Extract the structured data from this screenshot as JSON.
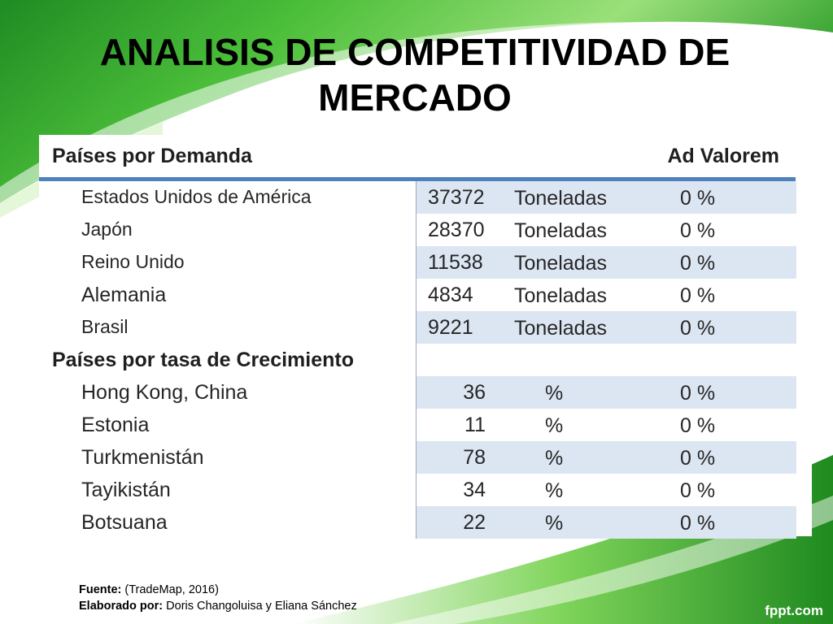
{
  "title": "ANALISIS DE COMPETITIVIDAD DE MERCADO",
  "table": {
    "header_left": "Países por Demanda",
    "header_right": "Ad Valorem",
    "demand_rows": [
      {
        "country": "Estados  Unidos  de  América",
        "value": "37372",
        "unit": "Toneladas",
        "ad_valorem": "0 %"
      },
      {
        "country": "Japón",
        "value": "28370",
        "unit": "Toneladas",
        "ad_valorem": "0 %"
      },
      {
        "country": "Reino  Unido",
        "value": "11538",
        "unit": "Toneladas",
        "ad_valorem": "0 %"
      },
      {
        "country": "Alemania",
        "value": "4834",
        "unit": "Toneladas",
        "ad_valorem": "0 %"
      },
      {
        "country": "Brasil",
        "value": "9221",
        "unit": "Toneladas",
        "ad_valorem": "0 %"
      }
    ],
    "growth_section_label": "Países por tasa de Crecimiento",
    "growth_rows": [
      {
        "country": "Hong Kong, China",
        "value": "36",
        "unit": "%",
        "ad_valorem": "0 %"
      },
      {
        "country": "Estonia",
        "value": "11",
        "unit": "%",
        "ad_valorem": "0 %"
      },
      {
        "country": "Turkmenistán",
        "value": "78",
        "unit": "%",
        "ad_valorem": "0 %"
      },
      {
        "country": "Tayikistán",
        "value": "34",
        "unit": "%",
        "ad_valorem": "0 %"
      },
      {
        "country": "Botsuana",
        "value": "22",
        "unit": "%",
        "ad_valorem": "0 %"
      }
    ]
  },
  "footer": {
    "source_label": "Fuente:",
    "source_value": " (TradeMap, 2016)",
    "author_label": "Elaborado por:",
    "author_value": " Doris Changoluisa y Eliana Sánchez"
  },
  "logo": "fppt.com",
  "colors": {
    "green_dark": "#1f8a1f",
    "green_light": "#7ed957",
    "table_shade": "#dce6f2",
    "table_rule": "#4f81bd"
  }
}
